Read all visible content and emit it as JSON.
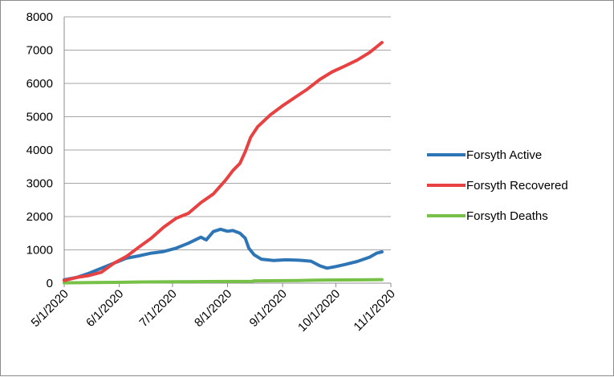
{
  "chart_data": {
    "type": "line",
    "title": "",
    "xlabel": "",
    "ylabel": "",
    "ylim": [
      0,
      8000
    ],
    "y_ticks": [
      0,
      1000,
      2000,
      3000,
      4000,
      5000,
      6000,
      7000,
      8000
    ],
    "x_ticks": [
      "5/1/2020",
      "6/1/2020",
      "7/1/2020",
      "8/1/2020",
      "9/1/2020",
      "10/1/2020",
      "11/1/2020"
    ],
    "x_range": [
      "2020-05-01",
      "2020-11-01"
    ],
    "grid": "horizontal",
    "legend_position": "right",
    "series": [
      {
        "name": "Forsyth Active",
        "color": "#2e75b6",
        "points": [
          [
            "2020-05-01",
            100
          ],
          [
            "2020-05-08",
            170
          ],
          [
            "2020-05-15",
            300
          ],
          [
            "2020-05-22",
            450
          ],
          [
            "2020-05-29",
            600
          ],
          [
            "2020-06-05",
            750
          ],
          [
            "2020-06-12",
            820
          ],
          [
            "2020-06-19",
            900
          ],
          [
            "2020-06-26",
            950
          ],
          [
            "2020-07-03",
            1050
          ],
          [
            "2020-07-10",
            1200
          ],
          [
            "2020-07-17",
            1380
          ],
          [
            "2020-07-20",
            1300
          ],
          [
            "2020-07-24",
            1550
          ],
          [
            "2020-07-28",
            1620
          ],
          [
            "2020-08-01",
            1560
          ],
          [
            "2020-08-04",
            1580
          ],
          [
            "2020-08-08",
            1500
          ],
          [
            "2020-08-11",
            1350
          ],
          [
            "2020-08-13",
            1050
          ],
          [
            "2020-08-16",
            850
          ],
          [
            "2020-08-20",
            720
          ],
          [
            "2020-08-27",
            680
          ],
          [
            "2020-09-03",
            700
          ],
          [
            "2020-09-10",
            690
          ],
          [
            "2020-09-17",
            660
          ],
          [
            "2020-09-22",
            520
          ],
          [
            "2020-09-26",
            450
          ],
          [
            "2020-10-01",
            500
          ],
          [
            "2020-10-06",
            560
          ],
          [
            "2020-10-13",
            650
          ],
          [
            "2020-10-20",
            780
          ],
          [
            "2020-10-24",
            900
          ],
          [
            "2020-10-27",
            940
          ]
        ]
      },
      {
        "name": "Forsyth Recovered",
        "color": "#e84141",
        "points": [
          [
            "2020-05-01",
            80
          ],
          [
            "2020-05-08",
            170
          ],
          [
            "2020-05-15",
            230
          ],
          [
            "2020-05-22",
            330
          ],
          [
            "2020-05-29",
            600
          ],
          [
            "2020-06-05",
            800
          ],
          [
            "2020-06-12",
            1080
          ],
          [
            "2020-06-19",
            1350
          ],
          [
            "2020-06-26",
            1680
          ],
          [
            "2020-07-03",
            1950
          ],
          [
            "2020-07-10",
            2100
          ],
          [
            "2020-07-17",
            2420
          ],
          [
            "2020-07-24",
            2680
          ],
          [
            "2020-07-31",
            3100
          ],
          [
            "2020-08-04",
            3380
          ],
          [
            "2020-08-08",
            3600
          ],
          [
            "2020-08-11",
            3950
          ],
          [
            "2020-08-14",
            4380
          ],
          [
            "2020-08-18",
            4700
          ],
          [
            "2020-08-25",
            5050
          ],
          [
            "2020-09-01",
            5330
          ],
          [
            "2020-09-08",
            5580
          ],
          [
            "2020-09-15",
            5830
          ],
          [
            "2020-09-22",
            6120
          ],
          [
            "2020-09-29",
            6350
          ],
          [
            "2020-10-06",
            6520
          ],
          [
            "2020-10-13",
            6700
          ],
          [
            "2020-10-20",
            6930
          ],
          [
            "2020-10-27",
            7230
          ]
        ]
      },
      {
        "name": "Forsyth Deaths",
        "color": "#77c149",
        "points": [
          [
            "2020-05-01",
            10
          ],
          [
            "2020-05-31",
            25
          ],
          [
            "2020-06-15",
            35
          ],
          [
            "2020-07-15",
            45
          ],
          [
            "2020-08-15",
            55
          ],
          [
            "2020-08-16",
            70
          ],
          [
            "2020-09-10",
            80
          ],
          [
            "2020-09-25",
            95
          ],
          [
            "2020-10-15",
            100
          ],
          [
            "2020-10-27",
            105
          ]
        ]
      }
    ]
  }
}
